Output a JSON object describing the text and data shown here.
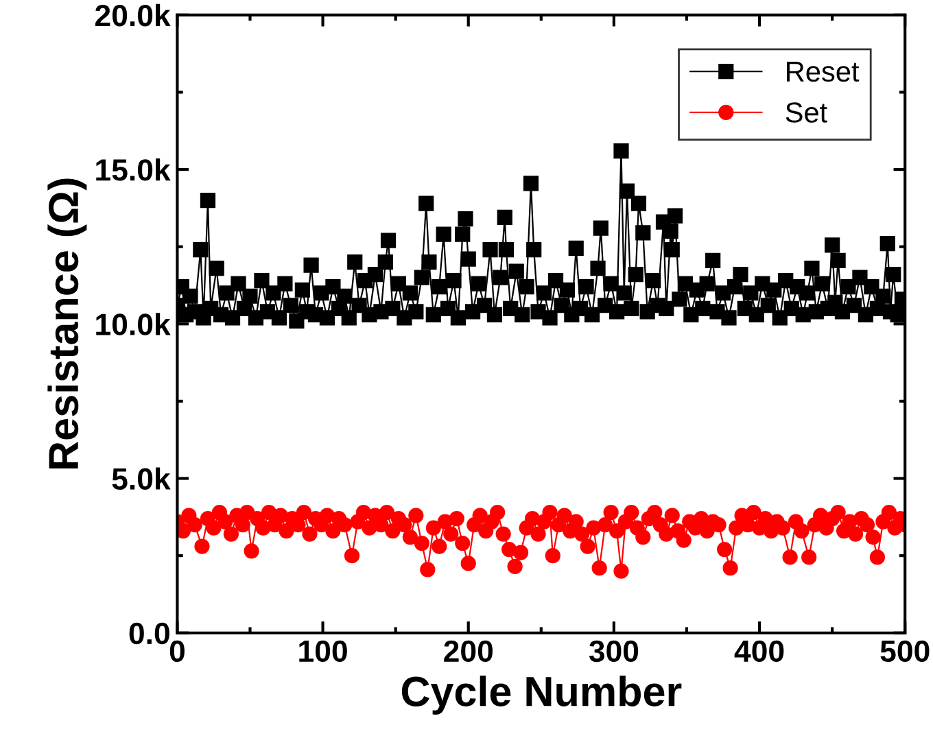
{
  "chart_data": {
    "type": "line",
    "xlabel": "Cycle Number",
    "ylabel": "Resistance (Ω)",
    "xlim": [
      0,
      500
    ],
    "xticks": [
      0,
      {
        "value": 50,
        "label": null
      },
      100,
      {
        "value": 150,
        "label": null
      },
      200,
      {
        "value": 250,
        "label": null
      },
      300,
      {
        "value": 350,
        "label": null
      },
      400,
      {
        "value": 450,
        "label": null
      },
      500
    ],
    "ylim": [
      0,
      20000
    ],
    "yticks": [
      {
        "value": 0,
        "label": "0.0"
      },
      {
        "value": 2500,
        "label": null
      },
      {
        "value": 5000,
        "label": "5.0k"
      },
      {
        "value": 7500,
        "label": null
      },
      {
        "value": 10000,
        "label": "10.0k"
      },
      {
        "value": 12500,
        "label": null
      },
      {
        "value": 15000,
        "label": "15.0k"
      },
      {
        "value": 17500,
        "label": null
      },
      {
        "value": 20000,
        "label": "20.0k"
      }
    ],
    "grid": false,
    "legend": "top right",
    "line_style": "solid",
    "series": [
      {
        "name": "Reset",
        "color": "#000000",
        "marker": "square",
        "x": [
          0,
          3,
          6,
          9,
          12,
          16,
          18,
          21,
          23,
          27,
          30,
          34,
          38,
          42,
          46,
          50,
          54,
          58,
          62,
          66,
          70,
          74,
          78,
          82,
          86,
          89,
          92,
          95,
          99,
          103,
          107,
          111,
          115,
          118,
          122,
          125,
          129,
          132,
          136,
          140,
          143,
          145,
          148,
          152,
          156,
          160,
          164,
          168,
          171,
          173,
          176,
          180,
          183,
          186,
          190,
          193,
          196,
          198,
          200,
          203,
          207,
          211,
          215,
          218,
          222,
          225,
          226,
          229,
          233,
          237,
          240,
          243,
          245,
          248,
          252,
          256,
          260,
          264,
          268,
          271,
          274,
          277,
          281,
          285,
          289,
          291,
          294,
          298,
          302,
          305,
          307,
          309,
          312,
          315,
          317,
          320,
          323,
          327,
          330,
          334,
          336,
          339,
          340,
          342,
          345,
          349,
          353,
          357,
          361,
          364,
          368,
          371,
          375,
          379,
          383,
          387,
          390,
          394,
          398,
          402,
          406,
          410,
          414,
          418,
          422,
          426,
          430,
          433,
          436,
          439,
          443,
          447,
          450,
          452,
          454,
          457,
          461,
          465,
          469,
          473,
          477,
          481,
          485,
          488,
          490,
          492,
          495,
          498,
          500
        ],
        "values": [
          10600,
          11200,
          10300,
          10900,
          10400,
          12400,
          10200,
          14000,
          10500,
          11800,
          10300,
          11000,
          10200,
          11300,
          10500,
          10900,
          10200,
          11400,
          10400,
          11000,
          10200,
          11300,
          10600,
          10100,
          11100,
          10400,
          11900,
          10300,
          11000,
          10200,
          11200,
          10500,
          10900,
          10200,
          12000,
          10600,
          11400,
          10300,
          11600,
          10400,
          12000,
          12700,
          10500,
          11300,
          10200,
          11000,
          10400,
          11500,
          13900,
          12000,
          10300,
          11200,
          12900,
          10500,
          11400,
          10200,
          12900,
          13400,
          12100,
          10400,
          11300,
          10600,
          12400,
          10300,
          11500,
          13450,
          12400,
          10500,
          11700,
          10300,
          11200,
          14550,
          12400,
          10400,
          11000,
          10200,
          11400,
          10600,
          11100,
          10300,
          12450,
          10500,
          11200,
          10300,
          11800,
          13100,
          10600,
          11300,
          10400,
          15600,
          11000,
          14300,
          10500,
          11600,
          13900,
          12950,
          10400,
          11400,
          10600,
          13300,
          10500,
          13000,
          12400,
          13500,
          10800,
          11300,
          10300,
          11100,
          10500,
          11300,
          12050,
          10400,
          11000,
          10200,
          11200,
          11600,
          10500,
          11000,
          10300,
          11300,
          10600,
          11100,
          10200,
          11400,
          10500,
          11200,
          10300,
          11000,
          11800,
          10400,
          11300,
          10500,
          12550,
          10700,
          12050,
          10400,
          11200,
          10600,
          11500,
          10300,
          11200,
          10500,
          10900,
          12600,
          10400,
          11600,
          10300,
          10800,
          10400
        ]
      },
      {
        "name": "Set",
        "color": "#ff0000",
        "marker": "circle",
        "x": [
          0,
          4,
          8,
          12,
          17,
          21,
          25,
          29,
          33,
          37,
          41,
          45,
          48,
          51,
          55,
          59,
          63,
          67,
          71,
          75,
          79,
          83,
          87,
          91,
          95,
          99,
          103,
          107,
          111,
          115,
          120,
          124,
          128,
          132,
          136,
          140,
          144,
          148,
          152,
          156,
          160,
          164,
          168,
          172,
          176,
          180,
          184,
          188,
          192,
          196,
          200,
          204,
          208,
          212,
          216,
          220,
          224,
          228,
          232,
          236,
          240,
          244,
          248,
          252,
          256,
          258,
          262,
          266,
          270,
          274,
          278,
          282,
          286,
          290,
          294,
          298,
          302,
          305,
          308,
          312,
          316,
          320,
          324,
          328,
          332,
          336,
          340,
          344,
          348,
          352,
          356,
          360,
          364,
          368,
          372,
          376,
          380,
          384,
          388,
          392,
          396,
          400,
          404,
          408,
          412,
          416,
          421,
          425,
          429,
          434,
          438,
          442,
          446,
          450,
          454,
          458,
          462,
          466,
          470,
          474,
          478,
          481,
          485,
          489,
          493,
          497,
          500
        ],
        "values": [
          3600,
          3300,
          3800,
          3500,
          2800,
          3700,
          3400,
          3900,
          3600,
          3200,
          3800,
          3500,
          3900,
          2650,
          3700,
          3400,
          3900,
          3500,
          3800,
          3300,
          3700,
          3500,
          3900,
          3200,
          3700,
          3500,
          3800,
          3300,
          3700,
          3500,
          2500,
          3600,
          3900,
          3400,
          3800,
          3500,
          3900,
          3300,
          3700,
          3500,
          3100,
          3800,
          2900,
          2050,
          3400,
          2800,
          3600,
          3200,
          3700,
          2900,
          2250,
          3500,
          3800,
          3300,
          3600,
          3900,
          3200,
          2700,
          2150,
          2600,
          3400,
          3700,
          3200,
          3600,
          3900,
          2500,
          3500,
          3800,
          3300,
          3600,
          3200,
          2800,
          3400,
          2100,
          3500,
          3900,
          3300,
          2000,
          3600,
          3900,
          3400,
          3100,
          3700,
          3900,
          3500,
          3200,
          3800,
          3300,
          3000,
          3600,
          3400,
          3700,
          3300,
          3600,
          3500,
          2700,
          2100,
          3400,
          3800,
          3500,
          3900,
          3400,
          3700,
          3300,
          3600,
          3400,
          2450,
          3600,
          3300,
          2450,
          3500,
          3800,
          3400,
          3700,
          3900,
          3300,
          3600,
          3200,
          3700,
          3500,
          3100,
          2450,
          3600,
          3900,
          3400,
          3700,
          3500
        ]
      }
    ]
  }
}
